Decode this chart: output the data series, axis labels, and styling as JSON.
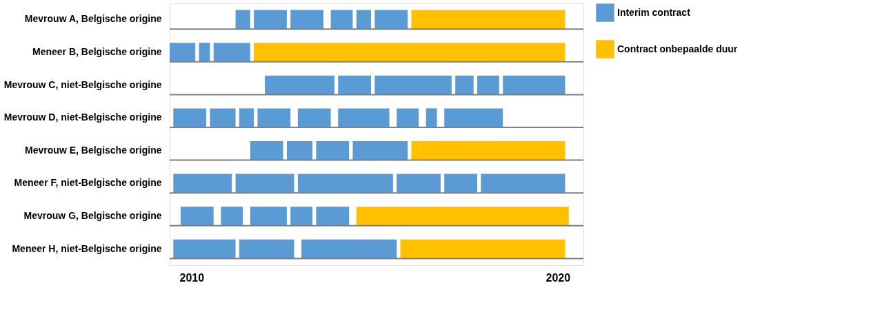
{
  "chart_data": {
    "type": "bar",
    "orientation": "horizontal",
    "legend": "top right",
    "categories": [
      "Mevrouw A, Belgische origine",
      "Meneer B, Belgische origine",
      "Mevrouw C, niet-Belgische origine",
      "Mevrouw D, niet-Belgische origine",
      "Mevrouw E, Belgische origine",
      "Meneer F, niet-Belgische origine",
      "Mevrouw G, Belgische origine",
      "Meneer H, niet-Belgische origine"
    ],
    "xlim": [
      2009.4,
      2020.7
    ],
    "xticks": [
      2010,
      2020
    ],
    "series": [
      {
        "name": "Interim contract",
        "color": "#5b9bd5",
        "base": [
          2011.2,
          2009.4,
          2012.0,
          2009.5,
          2011.6,
          2009.5,
          2009.7,
          2009.5
        ],
        "values": [
          0.4,
          0.7,
          1.9,
          0.9,
          0.9,
          1.6,
          0.9,
          1.7
        ]
      },
      {
        "color": "#5b9bd5",
        "base": [
          2011.7,
          2010.2,
          2014.0,
          2010.5,
          2012.6,
          2011.2,
          2010.8,
          2011.3
        ],
        "values": [
          0.9,
          0.3,
          0.9,
          0.7,
          0.7,
          1.6,
          0.6,
          1.5
        ]
      },
      {
        "color": "#5b9bd5",
        "base": [
          2012.7,
          2010.6,
          2015.0,
          2011.3,
          2013.4,
          2012.9,
          2011.6,
          2013.0
        ],
        "values": [
          0.9,
          1.0,
          2.1,
          0.4,
          0.9,
          2.6,
          1.0,
          2.6
        ]
      },
      {
        "color": "#5b9bd5",
        "base": [
          2013.8,
          null,
          2017.2,
          2011.8,
          2014.4,
          2015.6,
          2012.7,
          null
        ],
        "values": [
          0.6,
          null,
          0.5,
          0.9,
          1.5,
          1.2,
          0.6,
          null
        ]
      },
      {
        "color": "#5b9bd5",
        "base": [
          2014.5,
          null,
          2017.8,
          2012.9,
          null,
          2016.9,
          2013.4,
          null
        ],
        "values": [
          0.4,
          null,
          0.6,
          0.9,
          null,
          0.9,
          0.9,
          null
        ]
      },
      {
        "color": "#5b9bd5",
        "base": [
          2015.0,
          null,
          2018.5,
          2014.0,
          null,
          2017.9,
          null,
          null
        ],
        "values": [
          0.9,
          null,
          1.7,
          1.4,
          null,
          2.3,
          null,
          null
        ]
      },
      {
        "color": "#5b9bd5",
        "base": [
          null,
          null,
          null,
          2015.6,
          null,
          null,
          null,
          null
        ],
        "values": [
          null,
          null,
          null,
          0.6,
          null,
          null,
          null,
          null
        ]
      },
      {
        "color": "#5b9bd5",
        "base": [
          null,
          null,
          null,
          2016.4,
          null,
          null,
          null,
          null
        ],
        "values": [
          null,
          null,
          null,
          0.3,
          null,
          null,
          null,
          null
        ]
      },
      {
        "color": "#5b9bd5",
        "base": [
          null,
          null,
          null,
          2016.9,
          null,
          null,
          null,
          null
        ],
        "values": [
          null,
          null,
          null,
          1.6,
          null,
          null,
          null,
          null
        ]
      },
      {
        "name": "Contract onbepaalde duur",
        "color": "#ffc000",
        "base": [
          2016.0,
          2011.7,
          null,
          null,
          2016.0,
          null,
          2014.5,
          2015.7
        ],
        "values": [
          4.2,
          8.5,
          null,
          null,
          4.2,
          null,
          5.8,
          4.5
        ]
      }
    ]
  }
}
